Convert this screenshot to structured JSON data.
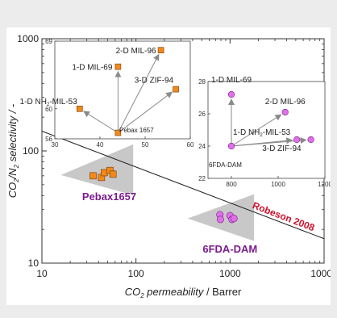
{
  "chart_data": {
    "type": "scatter",
    "main": {
      "xscale": "log",
      "yscale": "log",
      "xlim": [
        10,
        10000
      ],
      "ylim": [
        10,
        1000
      ],
      "xticks": [
        "10",
        "100",
        "1000",
        "10000"
      ],
      "yticks": [
        "10",
        "100",
        "1000"
      ],
      "xlabel": {
        "main": "CO",
        "sub": "2",
        "rest": " permeability",
        "unit": " / Barrer"
      },
      "ylabel": {
        "a": "CO",
        "b": "2",
        "c": "/N",
        "d": "2",
        "e": " selectivity / -"
      },
      "robeson_line": {
        "label": "Robeson 2008",
        "points": [
          [
            10,
            150
          ],
          [
            10000,
            16.5
          ]
        ]
      },
      "groups": [
        {
          "name": "Pebax1657",
          "color": "#f08a1c",
          "marker": "square",
          "text_color": "#7a1d8c",
          "points": [
            [
              35,
              60
            ],
            [
              43,
              58
            ],
            [
              46,
              64
            ],
            [
              53,
              67
            ],
            [
              57,
              62
            ]
          ]
        },
        {
          "name": "6FDA-DAM",
          "color": "#e070e8",
          "marker": "circle",
          "text_color": "#7a1d8c",
          "points": [
            [
              780,
              27
            ],
            [
              790,
              24.5
            ],
            [
              1000,
              26.5
            ],
            [
              1050,
              24.5
            ],
            [
              1100,
              25
            ]
          ]
        }
      ]
    },
    "inset_pebax": {
      "xlim": [
        30,
        60
      ],
      "ylim": [
        56,
        69
      ],
      "xticks": [
        "30",
        "40",
        "50",
        "60"
      ],
      "yticks": [
        "56",
        "60",
        "69"
      ],
      "origin": {
        "label": "Pebax 1657",
        "x": 44,
        "y": 56.8
      },
      "points": [
        {
          "label": "2-D MIL-96",
          "x": 53.5,
          "y": 67.8
        },
        {
          "label": "1-D MIL-69",
          "x": 44,
          "y": 65.6
        },
        {
          "label": "3-D ZIF-94",
          "x": 56.8,
          "y": 62.6
        },
        {
          "label": "1-D NH",
          "sub": "2",
          "rest": "-MIL-53",
          "x": 35.5,
          "y": 60
        }
      ]
    },
    "inset_6fda": {
      "xlim": [
        700,
        1200
      ],
      "ylim": [
        22,
        28
      ],
      "xticks": [
        "800",
        "1000",
        "1200"
      ],
      "yticks": [
        "22",
        "24",
        "26",
        "28"
      ],
      "origin": {
        "label": "6FDA-DAM",
        "x": 800,
        "y": 24
      },
      "points": [
        {
          "label": "1-D MIL-69",
          "x": 800,
          "y": 27.2
        },
        {
          "label": "2-D MIL-96",
          "x": 1030,
          "y": 26.1
        },
        {
          "label": "1-D NH",
          "sub": "2",
          "rest": "-MIL-53",
          "x": 1080,
          "y": 24.4
        },
        {
          "label": "3-D ZIF-94",
          "x": 1140,
          "y": 24.4
        }
      ]
    }
  }
}
